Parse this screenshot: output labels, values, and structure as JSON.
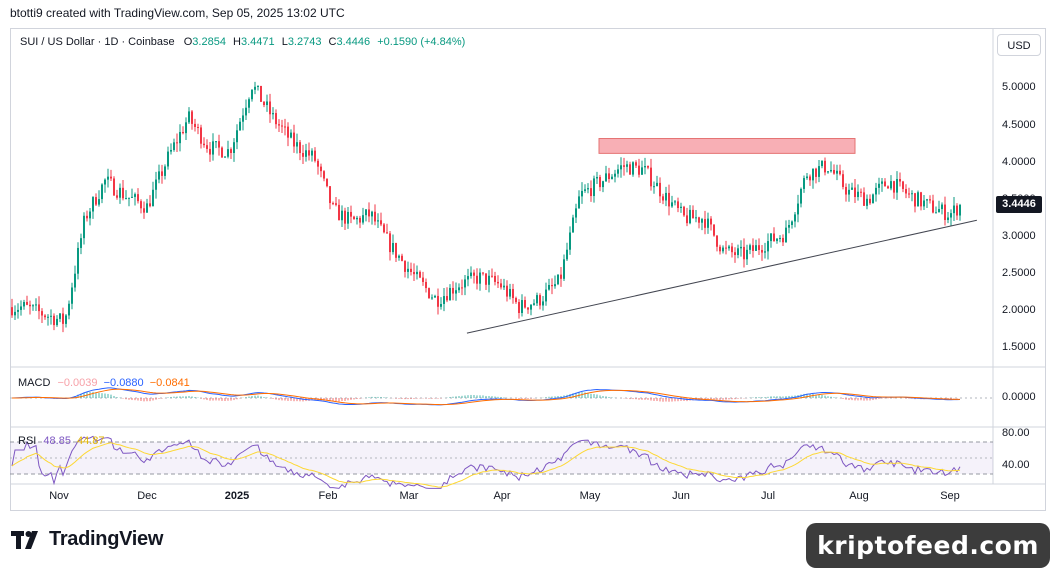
{
  "header": {
    "attribution": "btotti9 created with TradingView.com, Sep 05, 2025 13:02 UTC"
  },
  "legend": {
    "symbol": "SUI / US Dollar · 1D · Coinbase",
    "open_label": "O",
    "open": "3.2854",
    "high_label": "H",
    "high": "3.4471",
    "low_label": "L",
    "low": "3.2743",
    "close_label": "C",
    "close": "3.4446",
    "change": "+0.1590 (+4.84%)"
  },
  "currency_button": "USD",
  "current_price": "3.4446",
  "macd_legend": {
    "label": "MACD",
    "histogram": "−0.0039",
    "macd": "−0.0880",
    "signal": "−0.0841"
  },
  "rsi_legend": {
    "label": "RSI",
    "rsi": "48.85",
    "ma": "44.87"
  },
  "branding": {
    "logo_text": "TradingView",
    "watermark": "kriptofeed.com"
  },
  "colors": {
    "up": "#089981",
    "down": "#f23645",
    "macd": "#2962ff",
    "signal": "#ff6d00",
    "rsi": "#7e57c2",
    "rsi_ma": "#fdd835",
    "resistance_zone": "#f7a1a8"
  },
  "chart_data": {
    "type": "candlestick",
    "ylim": [
      1.3,
      5.4
    ],
    "y_ticks": [
      "5.0000",
      "4.5000",
      "4.0000",
      "3.5000",
      "3.0000",
      "2.5000",
      "2.0000",
      "1.5000"
    ],
    "x_ticks": [
      "Nov",
      "Dec",
      "2025",
      "Feb",
      "Mar",
      "Apr",
      "May",
      "Jun",
      "Jul",
      "Aug",
      "Sep"
    ],
    "macd_ticks": [
      "0.0000"
    ],
    "rsi_ticks": [
      "80.00",
      "40.00"
    ],
    "price_path": [
      [
        "Oct 20",
        2.05
      ],
      [
        "Oct 27",
        1.95
      ],
      [
        "Nov 3",
        1.85
      ],
      [
        "Nov 10",
        3.25
      ],
      [
        "Nov 17",
        3.75
      ],
      [
        "Nov 24",
        3.55
      ],
      [
        "Dec 1",
        3.4
      ],
      [
        "Dec 8",
        4.05
      ],
      [
        "Dec 15",
        4.6
      ],
      [
        "Dec 22",
        4.2
      ],
      [
        "Dec 29",
        4.15
      ],
      [
        "Jan 6",
        5.05
      ],
      [
        "Jan 13",
        4.6
      ],
      [
        "Jan 20",
        4.25
      ],
      [
        "Jan 27",
        4.05
      ],
      [
        "Feb 3",
        3.35
      ],
      [
        "Feb 10",
        3.2
      ],
      [
        "Feb 17",
        3.3
      ],
      [
        "Feb 24",
        2.9
      ],
      [
        "Mar 3",
        2.45
      ],
      [
        "Mar 10",
        2.15
      ],
      [
        "Mar 17",
        2.35
      ],
      [
        "Mar 24",
        2.45
      ],
      [
        "Mar 31",
        2.35
      ],
      [
        "Apr 7",
        2.05
      ],
      [
        "Apr 14",
        2.15
      ],
      [
        "Apr 21",
        2.4
      ],
      [
        "Apr 28",
        3.55
      ],
      [
        "May 5",
        3.75
      ],
      [
        "May 12",
        3.95
      ],
      [
        "May 19",
        3.9
      ],
      [
        "May 26",
        3.55
      ],
      [
        "Jun 2",
        3.25
      ],
      [
        "Jun 9",
        3.25
      ],
      [
        "Jun 16",
        2.8
      ],
      [
        "Jun 23",
        2.75
      ],
      [
        "Jun 30",
        2.9
      ],
      [
        "Jul 7",
        3.05
      ],
      [
        "Jul 14",
        3.85
      ],
      [
        "Jul 21",
        3.95
      ],
      [
        "Jul 28",
        3.6
      ],
      [
        "Aug 4",
        3.5
      ],
      [
        "Aug 11",
        3.75
      ],
      [
        "Aug 18",
        3.55
      ],
      [
        "Aug 25",
        3.4
      ],
      [
        "Sep 1",
        3.3
      ],
      [
        "Sep 5",
        3.44
      ]
    ],
    "resistance_zone": [
      4.12,
      4.32
    ],
    "trendline": [
      [
        "Mar 20",
        1.7
      ],
      [
        "Sep 10",
        3.22
      ]
    ]
  }
}
